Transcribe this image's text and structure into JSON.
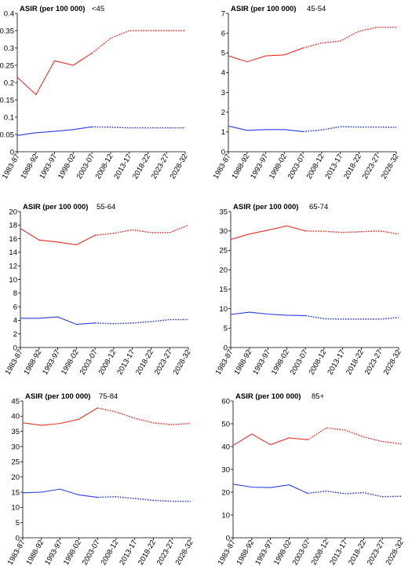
{
  "chart_data": [
    {
      "type": "line",
      "title": "<45",
      "ylabel": "ASIR (per 100 000)",
      "xlabel": "",
      "categories": [
        "1983-87",
        "1988-92",
        "1993-97",
        "1998-02",
        "2003-07",
        "2008-12",
        "2013-17",
        "2018-22",
        "2023-27",
        "2028-32"
      ],
      "ylim": [
        0,
        0.4
      ],
      "yticks": [
        0,
        0.05,
        0.1,
        0.15,
        0.2,
        0.25,
        0.3,
        0.35,
        0.4
      ],
      "ytick_labels": [
        "0",
        "0.05",
        "0.1",
        "0.15",
        "0.2",
        "0.25",
        "0.3",
        "0.35",
        "0.4"
      ],
      "series": [
        {
          "color": "#e8322b",
          "values": [
            0.215,
            0.165,
            0.263,
            0.25,
            0.285,
            0.328,
            0.35,
            0.35,
            0.35,
            0.35
          ]
        },
        {
          "color": "#2b3be8",
          "values": [
            0.047,
            0.055,
            0.059,
            0.064,
            0.072,
            0.071,
            0.069,
            0.069,
            0.069,
            0.069
          ]
        }
      ],
      "observed_until_index": 4
    },
    {
      "type": "line",
      "title": "45-54",
      "ylabel": "ASIR (per 100 000)",
      "xlabel": "",
      "categories": [
        "1983-87",
        "1988-92",
        "1993-97",
        "1998-02",
        "2003-07",
        "2008-12",
        "2013-17",
        "2018-22",
        "2023-27",
        "2028-32"
      ],
      "ylim": [
        0,
        7
      ],
      "yticks": [
        0,
        1,
        2,
        3,
        4,
        5,
        6,
        7
      ],
      "ytick_labels": [
        "0",
        "1",
        "2",
        "3",
        "4",
        "5",
        "6",
        "7"
      ],
      "series": [
        {
          "color": "#e8322b",
          "values": [
            4.85,
            4.55,
            4.85,
            4.9,
            5.25,
            5.5,
            5.6,
            6.1,
            6.3,
            6.3
          ]
        },
        {
          "color": "#2b3be8",
          "values": [
            1.3,
            1.08,
            1.12,
            1.12,
            1.02,
            1.1,
            1.27,
            1.25,
            1.25,
            1.23
          ]
        }
      ],
      "observed_until_index": 4
    },
    {
      "type": "line",
      "title": "55-64",
      "ylabel": "ASIR (per 100 000)",
      "xlabel": "",
      "categories": [
        "1983-87",
        "1988-92",
        "1993-97",
        "1998-02",
        "2003-07",
        "2008-12",
        "2013-17",
        "2018-22",
        "2023-27",
        "2028-32"
      ],
      "ylim": [
        0,
        20
      ],
      "yticks": [
        0,
        2,
        4,
        6,
        8,
        10,
        12,
        14,
        16,
        18,
        20
      ],
      "ytick_labels": [
        "0",
        "2",
        "4",
        "6",
        "8",
        "10",
        "12",
        "14",
        "16",
        "18",
        "20"
      ],
      "series": [
        {
          "color": "#e8322b",
          "values": [
            17.5,
            15.8,
            15.5,
            15.1,
            16.5,
            16.8,
            17.3,
            16.9,
            16.9,
            18.0
          ]
        },
        {
          "color": "#2b3be8",
          "values": [
            4.3,
            4.3,
            4.5,
            3.4,
            3.6,
            3.5,
            3.6,
            3.8,
            4.1,
            4.1
          ]
        }
      ],
      "observed_until_index": 4
    },
    {
      "type": "line",
      "title": "65-74",
      "ylabel": "ASIR (per 100 000)",
      "xlabel": "",
      "categories": [
        "1983-87",
        "1988-92",
        "1993-97",
        "1998-02",
        "2003-07",
        "2008-12",
        "2013-17",
        "2018-22",
        "2023-27",
        "2028-32"
      ],
      "ylim": [
        0,
        35
      ],
      "yticks": [
        0,
        5,
        10,
        15,
        20,
        25,
        30,
        35
      ],
      "ytick_labels": [
        "0",
        "5",
        "10",
        "15",
        "20",
        "25",
        "30",
        "35"
      ],
      "series": [
        {
          "color": "#e8322b",
          "values": [
            27.8,
            29.2,
            30.2,
            31.3,
            30.0,
            29.9,
            29.6,
            29.8,
            30.0,
            29.2
          ]
        },
        {
          "color": "#2b3be8",
          "values": [
            8.5,
            9.1,
            8.6,
            8.3,
            8.2,
            7.4,
            7.3,
            7.3,
            7.3,
            7.7
          ]
        }
      ],
      "observed_until_index": 4
    },
    {
      "type": "line",
      "title": "75-84",
      "ylabel": "ASIR (per 100 000)",
      "xlabel": "",
      "categories": [
        "1983-87",
        "1988-92",
        "1993-97",
        "1998-02",
        "2003-07",
        "2008-12",
        "2013-17",
        "2018-22",
        "2023-27",
        "2028-32"
      ],
      "ylim": [
        0,
        45
      ],
      "yticks": [
        0,
        5,
        10,
        15,
        20,
        25,
        30,
        35,
        40,
        45
      ],
      "ytick_labels": [
        "0",
        "5",
        "10",
        "15",
        "20",
        "25",
        "30",
        "35",
        "40",
        "45"
      ],
      "series": [
        {
          "color": "#e8322b",
          "values": [
            37.8,
            37.0,
            37.6,
            39.0,
            42.7,
            41.4,
            39.3,
            37.8,
            37.2,
            37.6
          ]
        },
        {
          "color": "#2b3be8",
          "values": [
            14.8,
            15.0,
            16.0,
            14.1,
            13.3,
            13.5,
            12.9,
            12.3,
            12.0,
            12.0
          ]
        }
      ],
      "observed_until_index": 4
    },
    {
      "type": "line",
      "title": "85+",
      "ylabel": "ASIR (per 100 000)",
      "xlabel": "",
      "categories": [
        "1983-87",
        "1988-92",
        "1993-97",
        "1998-02",
        "2003-07",
        "2008-12",
        "2013-17",
        "2018-22",
        "2023-27",
        "2028-32"
      ],
      "ylim": [
        0,
        60
      ],
      "yticks": [
        0,
        10,
        20,
        30,
        40,
        50,
        60
      ],
      "ytick_labels": [
        "0",
        "10",
        "20",
        "30",
        "40",
        "50",
        "60"
      ],
      "series": [
        {
          "color": "#e8322b",
          "values": [
            40.5,
            45.5,
            40.8,
            43.8,
            43.0,
            48.2,
            47.2,
            44.2,
            42.2,
            41.2
          ]
        },
        {
          "color": "#2b3be8",
          "values": [
            23.5,
            22.2,
            22.0,
            23.2,
            19.5,
            20.5,
            19.3,
            19.8,
            18.0,
            18.2
          ]
        }
      ],
      "observed_until_index": 4
    }
  ]
}
